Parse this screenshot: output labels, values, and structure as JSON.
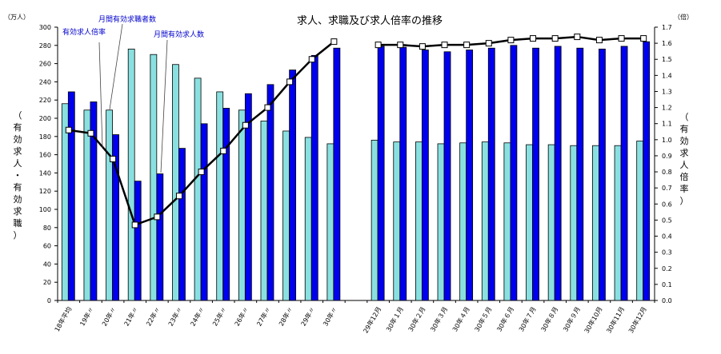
{
  "chart_data": {
    "type": "bar+line",
    "title": "求人、求職及び求人倍率の推移",
    "left_unit": "（万人）",
    "right_unit": "（倍）",
    "ylabel_left": "（有効求人・有効求職）",
    "ylabel_right": "（有効求人倍率）",
    "ylim_left": [
      0,
      300
    ],
    "ylim_right": [
      0,
      1.7
    ],
    "yticks_left": [
      "0",
      "20",
      "40",
      "60",
      "80",
      "100",
      "120",
      "140",
      "160",
      "180",
      "200",
      "220",
      "240",
      "260",
      "280",
      "300"
    ],
    "yticks_right": [
      "0.0",
      "0.1",
      "0.2",
      "0.3",
      "0.4",
      "0.5",
      "0.6",
      "0.7",
      "0.8",
      "0.9",
      "1.0",
      "1.1",
      "1.2",
      "1.3",
      "1.4",
      "1.5",
      "1.6",
      "1.7"
    ],
    "grid": false,
    "categories": [
      "18年平均",
      "19年〃",
      "20年〃",
      "21年〃",
      "22年〃",
      "23年〃",
      "24年〃",
      "25年〃",
      "26年〃",
      "27年〃",
      "28年〃",
      "29年〃",
      "30年〃",
      "29年12月",
      "30年１月",
      "30年２月",
      "30年３月",
      "30年４月",
      "30年５月",
      "30年６月",
      "30年７月",
      "30年８月",
      "30年９月",
      "30年10月",
      "30年11月",
      "30年12月"
    ],
    "series": [
      {
        "name": "月間有効求職者数",
        "type": "bar",
        "axis": "left",
        "color": "#8ae0e0",
        "values": [
          216,
          209,
          209,
          276,
          270,
          259,
          244,
          229,
          209,
          197,
          186,
          179,
          172,
          176,
          174,
          174,
          172,
          173,
          174,
          173,
          171,
          171,
          170,
          170,
          170,
          175
        ]
      },
      {
        "name": "月間有効求人数",
        "type": "bar",
        "axis": "left",
        "color": "#0000ee",
        "values": [
          229,
          218,
          182,
          131,
          139,
          167,
          194,
          211,
          227,
          237,
          253,
          269,
          277,
          279,
          278,
          275,
          273,
          275,
          277,
          280,
          277,
          279,
          277,
          276,
          279,
          284
        ]
      },
      {
        "name": "有効求人倍率",
        "type": "line",
        "axis": "right",
        "color": "#000000",
        "values": [
          1.06,
          1.04,
          0.88,
          0.47,
          0.52,
          0.65,
          0.8,
          0.93,
          1.09,
          1.2,
          1.36,
          1.5,
          1.61,
          1.59,
          1.59,
          1.58,
          1.59,
          1.59,
          1.6,
          1.62,
          1.63,
          1.63,
          1.64,
          1.62,
          1.63,
          1.63
        ]
      }
    ],
    "annotations": [
      "有効求人倍率",
      "月間有効求職者数",
      "月間有効求人数"
    ],
    "annotation_color": "#0000cc"
  }
}
